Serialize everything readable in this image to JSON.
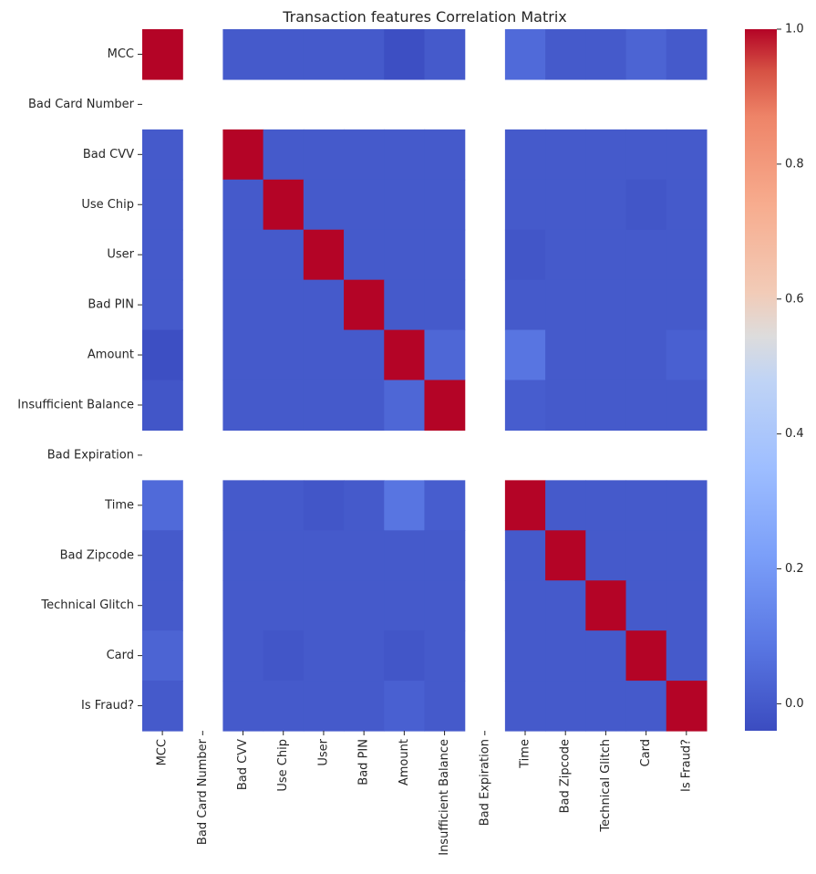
{
  "chart_data": {
    "type": "heatmap",
    "title": "Transaction features Correlation Matrix",
    "xlabel": "",
    "ylabel": "",
    "colormap": "coolwarm",
    "vmin": -0.04,
    "vmax": 1.0,
    "row_labels": [
      "MCC",
      "Bad Card Number",
      "Bad CVV",
      "Use Chip",
      "User",
      "Bad PIN",
      "Amount",
      "Insufficient Balance",
      "Bad Expiration",
      "Time",
      "Bad Zipcode",
      "Technical Glitch",
      "Card",
      "Is Fraud?"
    ],
    "col_labels": [
      "MCC",
      "Bad Card Number",
      "Bad CVV",
      "Use Chip",
      "User",
      "Bad PIN",
      "Amount",
      "Insufficient Balance",
      "Bad Expiration",
      "Time",
      "Bad Zipcode",
      "Technical Glitch",
      "Card",
      "Is Fraud?"
    ],
    "values": [
      [
        1.0,
        null,
        0.0,
        0.0,
        0.0,
        0.0,
        -0.03,
        0.0,
        null,
        0.05,
        0.0,
        0.0,
        0.03,
        0.0
      ],
      [
        null,
        null,
        null,
        null,
        null,
        null,
        null,
        null,
        null,
        null,
        null,
        null,
        null,
        null
      ],
      [
        0.0,
        null,
        1.0,
        0.0,
        0.0,
        0.0,
        0.0,
        0.0,
        null,
        0.0,
        0.0,
        0.0,
        0.0,
        0.0
      ],
      [
        0.0,
        null,
        0.0,
        1.0,
        0.0,
        0.0,
        0.0,
        0.0,
        null,
        0.0,
        0.0,
        0.0,
        -0.01,
        0.0
      ],
      [
        0.0,
        null,
        0.0,
        0.0,
        1.0,
        0.0,
        0.0,
        0.0,
        null,
        -0.01,
        0.0,
        0.0,
        0.0,
        0.0
      ],
      [
        0.0,
        null,
        0.0,
        0.0,
        0.0,
        1.0,
        0.0,
        0.0,
        null,
        0.0,
        0.0,
        0.0,
        0.0,
        0.0
      ],
      [
        -0.03,
        null,
        0.0,
        0.0,
        0.0,
        0.0,
        1.0,
        0.04,
        null,
        0.08,
        0.0,
        0.0,
        0.0,
        0.02
      ],
      [
        -0.01,
        null,
        0.0,
        0.0,
        0.0,
        0.0,
        0.04,
        1.0,
        null,
        0.01,
        0.0,
        0.0,
        0.0,
        0.0
      ],
      [
        null,
        null,
        null,
        null,
        null,
        null,
        null,
        null,
        null,
        null,
        null,
        null,
        null,
        null
      ],
      [
        0.05,
        null,
        0.0,
        0.0,
        -0.01,
        0.0,
        0.08,
        0.01,
        null,
        1.0,
        0.0,
        0.0,
        0.0,
        0.0
      ],
      [
        0.0,
        null,
        0.0,
        0.0,
        0.0,
        0.0,
        0.0,
        0.0,
        null,
        0.0,
        1.0,
        0.0,
        0.0,
        0.0
      ],
      [
        0.0,
        null,
        0.0,
        0.0,
        0.0,
        0.0,
        0.0,
        0.0,
        null,
        0.0,
        0.0,
        1.0,
        0.0,
        0.0
      ],
      [
        0.03,
        null,
        0.0,
        -0.01,
        0.0,
        0.0,
        -0.01,
        0.0,
        null,
        0.0,
        0.0,
        0.0,
        1.0,
        0.0
      ],
      [
        0.0,
        null,
        0.0,
        0.0,
        0.0,
        0.0,
        0.02,
        0.0,
        null,
        0.0,
        0.0,
        0.0,
        0.0,
        1.0
      ]
    ],
    "colorbar_ticks": [
      1.0,
      0.8,
      0.6,
      0.4,
      0.2,
      0.0
    ],
    "colorbar_tick_labels": [
      "1.0",
      "0.8",
      "0.6",
      "0.4",
      "0.2",
      "0.0"
    ]
  }
}
